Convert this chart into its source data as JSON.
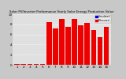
{
  "title": "Solar PV/Inverter Performance Yearly Solar Energy Production Value",
  "months": [
    1,
    2,
    3,
    4,
    5,
    6,
    7,
    8,
    9,
    10,
    11,
    12,
    13,
    14,
    15
  ],
  "values": [
    0.1,
    0.1,
    0.1,
    0.2,
    0.15,
    8.5,
    7.2,
    9.0,
    7.5,
    9.0,
    7.8,
    8.3,
    6.9,
    5.5,
    7.5
  ],
  "bar_color": "#ee0000",
  "bg_color": "#c8c8c8",
  "plot_bg": "#e0e0e0",
  "grid_color": "#ffffff",
  "text_color": "#000000",
  "ylim": [
    0,
    10
  ],
  "legend_labels": [
    "Simulated",
    "Measured"
  ],
  "legend_colors": [
    "#0000dd",
    "#ee0000"
  ],
  "figsize": [
    1.6,
    1.0
  ],
  "dpi": 100
}
